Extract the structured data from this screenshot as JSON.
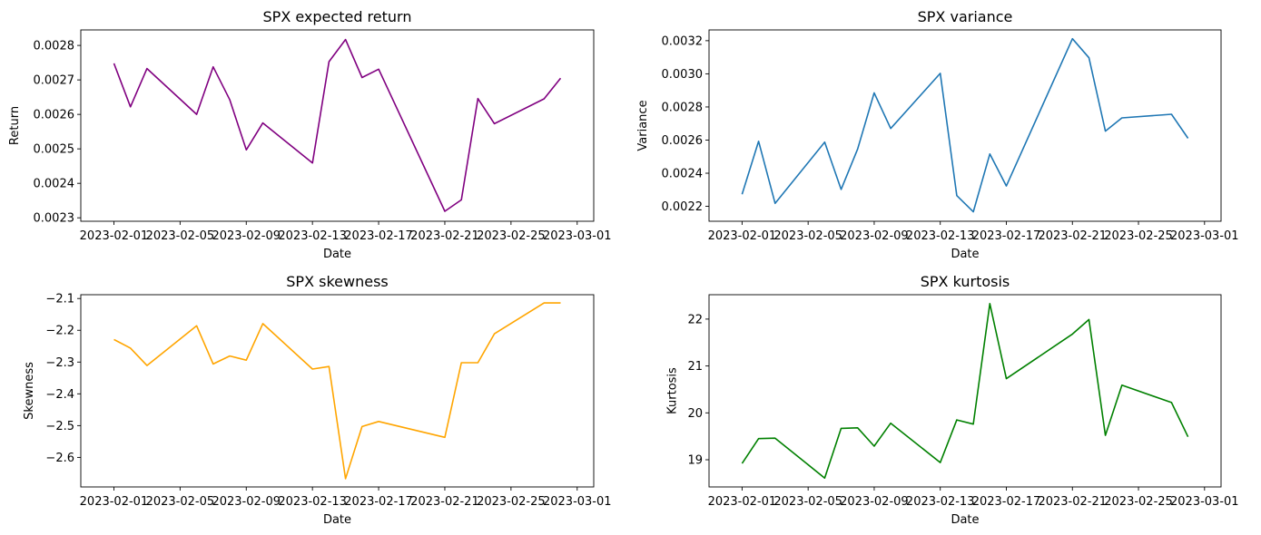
{
  "chart_data": [
    {
      "type": "line",
      "title": "SPX expected return",
      "xlabel": "Date",
      "ylabel": "Return",
      "color": "#800080",
      "xlim": [
        "2023-01-30",
        "2023-03-02"
      ],
      "ylim": [
        0.00229,
        0.002845
      ],
      "xticks": [
        "2023-02-01",
        "2023-02-05",
        "2023-02-09",
        "2023-02-13",
        "2023-02-17",
        "2023-02-21",
        "2023-02-25",
        "2023-03-01"
      ],
      "yticks": [
        "0.0023",
        "0.0024",
        "0.0025",
        "0.0026",
        "0.0027",
        "0.0028"
      ],
      "x": [
        "2023-02-01",
        "2023-02-02",
        "2023-02-03",
        "2023-02-06",
        "2023-02-07",
        "2023-02-08",
        "2023-02-09",
        "2023-02-10",
        "2023-02-13",
        "2023-02-14",
        "2023-02-15",
        "2023-02-16",
        "2023-02-17",
        "2023-02-21",
        "2023-02-22",
        "2023-02-23",
        "2023-02-24",
        "2023-02-27",
        "2023-02-28"
      ],
      "series": [
        {
          "values": [
            0.002748,
            0.002622,
            0.002733,
            0.0026,
            0.002738,
            0.002643,
            0.002497,
            0.002575,
            0.002459,
            0.002753,
            0.002817,
            0.002707,
            0.002731,
            0.002319,
            0.002352,
            0.002646,
            0.002573,
            0.002645,
            0.002705
          ]
        }
      ]
    },
    {
      "type": "line",
      "title": "SPX variance",
      "xlabel": "Date",
      "ylabel": "Variance",
      "color": "#1f77b4",
      "xlim": [
        "2023-01-30",
        "2023-03-02"
      ],
      "ylim": [
        0.00211,
        0.003265
      ],
      "xticks": [
        "2023-02-01",
        "2023-02-05",
        "2023-02-09",
        "2023-02-13",
        "2023-02-17",
        "2023-02-21",
        "2023-02-25",
        "2023-03-01"
      ],
      "yticks": [
        "0.0022",
        "0.0024",
        "0.0026",
        "0.0028",
        "0.0030",
        "0.0032"
      ],
      "x": [
        "2023-02-01",
        "2023-02-02",
        "2023-02-03",
        "2023-02-06",
        "2023-02-07",
        "2023-02-08",
        "2023-02-09",
        "2023-02-10",
        "2023-02-13",
        "2023-02-14",
        "2023-02-15",
        "2023-02-16",
        "2023-02-17",
        "2023-02-21",
        "2023-02-22",
        "2023-02-23",
        "2023-02-24",
        "2023-02-27",
        "2023-02-28"
      ],
      "series": [
        {
          "values": [
            0.002273,
            0.002593,
            0.002218,
            0.002588,
            0.002302,
            0.002546,
            0.002885,
            0.00267,
            0.003003,
            0.002265,
            0.002167,
            0.002516,
            0.002323,
            0.003212,
            0.003097,
            0.002654,
            0.002734,
            0.002756,
            0.002611
          ]
        }
      ]
    },
    {
      "type": "line",
      "title": "SPX skewness",
      "xlabel": "Date",
      "ylabel": "Skewness",
      "color": "#ffa500",
      "xlim": [
        "2023-01-30",
        "2023-03-02"
      ],
      "ylim": [
        -2.693,
        -2.088
      ],
      "xticks": [
        "2023-02-01",
        "2023-02-05",
        "2023-02-09",
        "2023-02-13",
        "2023-02-17",
        "2023-02-21",
        "2023-02-25",
        "2023-03-01"
      ],
      "yticks": [
        "−2.6",
        "−2.5",
        "−2.4",
        "−2.3",
        "−2.2",
        "−2.1"
      ],
      "x": [
        "2023-02-01",
        "2023-02-02",
        "2023-02-03",
        "2023-02-06",
        "2023-02-07",
        "2023-02-08",
        "2023-02-09",
        "2023-02-10",
        "2023-02-13",
        "2023-02-14",
        "2023-02-15",
        "2023-02-16",
        "2023-02-17",
        "2023-02-21",
        "2023-02-22",
        "2023-02-23",
        "2023-02-24",
        "2023-02-27",
        "2023-02-28"
      ],
      "series": [
        {
          "values": [
            -2.229,
            -2.256,
            -2.311,
            -2.186,
            -2.306,
            -2.281,
            -2.294,
            -2.179,
            -2.322,
            -2.314,
            -2.667,
            -2.503,
            -2.487,
            -2.537,
            -2.302,
            -2.302,
            -2.211,
            -2.114,
            -2.114
          ]
        }
      ]
    },
    {
      "type": "line",
      "title": "SPX kurtosis",
      "xlabel": "Date",
      "ylabel": "Kurtosis",
      "color": "#008000",
      "xlim": [
        "2023-01-30",
        "2023-03-02"
      ],
      "ylim": [
        18.42,
        22.52
      ],
      "xticks": [
        "2023-02-01",
        "2023-02-05",
        "2023-02-09",
        "2023-02-13",
        "2023-02-17",
        "2023-02-21",
        "2023-02-25",
        "2023-03-01"
      ],
      "yticks": [
        "19",
        "20",
        "21",
        "22"
      ],
      "x": [
        "2023-02-01",
        "2023-02-02",
        "2023-02-03",
        "2023-02-06",
        "2023-02-07",
        "2023-02-08",
        "2023-02-09",
        "2023-02-10",
        "2023-02-13",
        "2023-02-14",
        "2023-02-15",
        "2023-02-16",
        "2023-02-17",
        "2023-02-21",
        "2023-02-22",
        "2023-02-23",
        "2023-02-24",
        "2023-02-27",
        "2023-02-28"
      ],
      "series": [
        {
          "values": [
            18.92,
            19.45,
            19.46,
            18.61,
            19.67,
            19.68,
            19.29,
            19.78,
            18.94,
            19.85,
            19.76,
            22.33,
            20.73,
            21.68,
            21.99,
            19.52,
            20.59,
            20.22,
            19.49
          ]
        }
      ]
    }
  ]
}
